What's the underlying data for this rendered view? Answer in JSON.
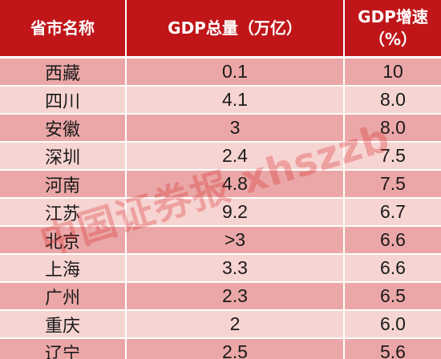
{
  "table": {
    "headers": [
      "省市名称",
      "GDP总量（万亿）",
      "GDP增速\n（%）"
    ],
    "rows": [
      {
        "name": "西藏",
        "gdp": "0.1",
        "growth": "10"
      },
      {
        "name": "四川",
        "gdp": "4.1",
        "growth": "8.0"
      },
      {
        "name": "安徽",
        "gdp": "3",
        "growth": "8.0"
      },
      {
        "name": "深圳",
        "gdp": "2.4",
        "growth": "7.5"
      },
      {
        "name": "河南",
        "gdp": "4.8",
        "growth": "7.5"
      },
      {
        "name": "江苏",
        "gdp": "9.2",
        "growth": "6.7"
      },
      {
        "name": "北京",
        "gdp": ">3",
        "growth": "6.6"
      },
      {
        "name": "上海",
        "gdp": "3.3",
        "growth": "6.6"
      },
      {
        "name": "广州",
        "gdp": "2.3",
        "growth": "6.5"
      },
      {
        "name": "重庆",
        "gdp": "2",
        "growth": "6.0"
      },
      {
        "name": "辽宁",
        "gdp": "2.5",
        "growth": "5.6"
      }
    ]
  },
  "watermark": "中国证券报 xhszzb",
  "colors": {
    "header_bg": "#c0161a",
    "row_odd": "#eba7a7",
    "row_even": "#f6d4d2"
  }
}
